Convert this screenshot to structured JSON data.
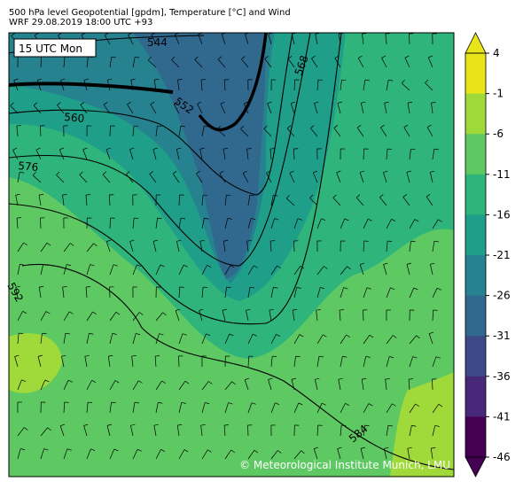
{
  "header": {
    "title": "500 hPa level Geopotential [gpdm], Temperature [°C] and Wind",
    "subtitle": "WRF 29.08.2019 18:00 UTC +93"
  },
  "map": {
    "time_label": "15 UTC Mon",
    "contour_labels": [
      544,
      552,
      560,
      568,
      576,
      584,
      592
    ],
    "credit": "© Meteorological Institute Munich, LMU"
  },
  "colorbar": {
    "ticks": [
      4,
      -1,
      -6,
      -11,
      -16,
      -21,
      -26,
      -31,
      -36,
      -41,
      -46
    ],
    "colors": [
      "#e8e419",
      "#9fda3a",
      "#5ec962",
      "#2fb47c",
      "#1f9e89",
      "#26828e",
      "#31688e",
      "#3e4989",
      "#482878",
      "#440154"
    ]
  }
}
